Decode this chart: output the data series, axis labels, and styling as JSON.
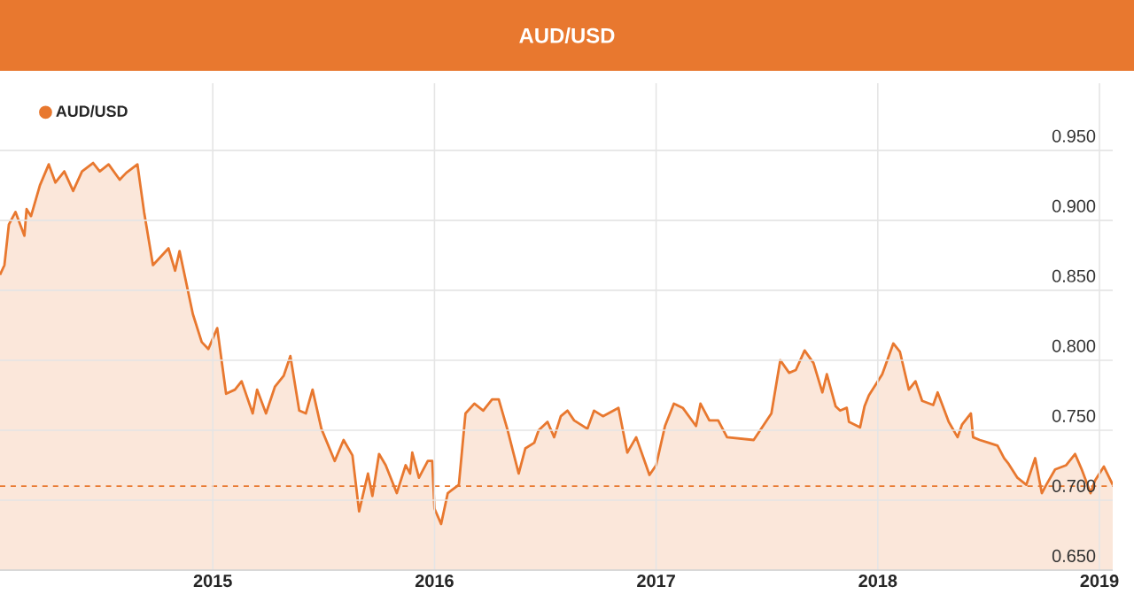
{
  "chart_data": {
    "type": "area",
    "title": "AUD/USD",
    "x": [
      2014.04,
      2014.06,
      2014.08,
      2014.11,
      2014.15,
      2014.16,
      2014.18,
      2014.22,
      2014.26,
      2014.29,
      2014.33,
      2014.37,
      2014.41,
      2014.46,
      2014.49,
      2014.53,
      2014.58,
      2014.61,
      2014.66,
      2014.69,
      2014.73,
      2014.8,
      2014.83,
      2014.85,
      2014.91,
      2014.95,
      2014.98,
      2015.02,
      2015.06,
      2015.1,
      2015.13,
      2015.18,
      2015.2,
      2015.24,
      2015.28,
      2015.32,
      2015.35,
      2015.39,
      2015.42,
      2015.45,
      2015.49,
      2015.55,
      2015.59,
      2015.63,
      2015.66,
      2015.7,
      2015.72,
      2015.75,
      2015.78,
      2015.83,
      2015.87,
      2015.89,
      2015.9,
      2015.93,
      2015.97,
      2015.99,
      2016.0,
      2016.03,
      2016.06,
      2016.11,
      2016.14,
      2016.18,
      2016.22,
      2016.23,
      2016.26,
      2016.29,
      2016.33,
      2016.38,
      2016.41,
      2016.45,
      2016.47,
      2016.51,
      2016.54,
      2016.57,
      2016.6,
      2016.63,
      2016.69,
      2016.72,
      2016.76,
      2016.83,
      2016.87,
      2016.91,
      2016.97,
      2017.0,
      2017.04,
      2017.08,
      2017.12,
      2017.18,
      2017.2,
      2017.24,
      2017.28,
      2017.32,
      2017.44,
      2017.52,
      2017.56,
      2017.6,
      2017.63,
      2017.67,
      2017.71,
      2017.75,
      2017.77,
      2017.81,
      2017.83,
      2017.86,
      2017.87,
      2017.92,
      2017.94,
      2017.96,
      2018.02,
      2018.07,
      2018.1,
      2018.14,
      2018.17,
      2018.2,
      2018.25,
      2018.27,
      2018.32,
      2018.36,
      2018.38,
      2018.42,
      2018.43,
      2018.46,
      2018.5,
      2018.54,
      2018.57,
      2018.59,
      2018.63,
      2018.67,
      2018.71,
      2018.74,
      2018.76,
      2018.8,
      2018.85,
      2018.89,
      2018.92,
      2018.96,
      2018.98,
      2019.02,
      2019.06
    ],
    "series": [
      {
        "name": "AUD/USD",
        "color": "#e8782f",
        "values": [
          0.861,
          0.868,
          0.897,
          0.906,
          0.889,
          0.908,
          0.903,
          0.925,
          0.94,
          0.927,
          0.935,
          0.921,
          0.935,
          0.941,
          0.935,
          0.94,
          0.929,
          0.934,
          0.94,
          0.906,
          0.868,
          0.88,
          0.864,
          0.878,
          0.833,
          0.813,
          0.808,
          0.823,
          0.776,
          0.779,
          0.785,
          0.762,
          0.779,
          0.762,
          0.781,
          0.789,
          0.803,
          0.764,
          0.762,
          0.779,
          0.751,
          0.728,
          0.743,
          0.732,
          0.692,
          0.719,
          0.703,
          0.733,
          0.725,
          0.705,
          0.725,
          0.719,
          0.734,
          0.716,
          0.728,
          0.728,
          0.694,
          0.683,
          0.705,
          0.711,
          0.762,
          0.769,
          0.764,
          0.766,
          0.772,
          0.772,
          0.75,
          0.719,
          0.737,
          0.741,
          0.75,
          0.756,
          0.745,
          0.76,
          0.764,
          0.757,
          0.751,
          0.764,
          0.76,
          0.766,
          0.734,
          0.745,
          0.718,
          0.725,
          0.753,
          0.769,
          0.766,
          0.753,
          0.769,
          0.757,
          0.757,
          0.745,
          0.743,
          0.762,
          0.8,
          0.791,
          0.793,
          0.807,
          0.798,
          0.777,
          0.79,
          0.767,
          0.764,
          0.766,
          0.756,
          0.752,
          0.767,
          0.775,
          0.79,
          0.812,
          0.806,
          0.779,
          0.785,
          0.771,
          0.768,
          0.777,
          0.756,
          0.745,
          0.754,
          0.762,
          0.745,
          0.743,
          0.741,
          0.739,
          0.73,
          0.726,
          0.716,
          0.711,
          0.73,
          0.705,
          0.711,
          0.722,
          0.725,
          0.733,
          0.722,
          0.705,
          0.714,
          0.724,
          0.711
        ]
      }
    ],
    "xlim": [
      2014.04,
      2019.06
    ],
    "ylim": [
      0.65,
      0.998
    ],
    "xticks": [
      2015,
      2016,
      2017,
      2018,
      2019
    ],
    "yticks": [
      {
        "value": 0.65,
        "label": "0.650"
      },
      {
        "value": 0.7,
        "label": "0.700"
      },
      {
        "value": 0.75,
        "label": "0.750"
      },
      {
        "value": 0.8,
        "label": "0.800"
      },
      {
        "value": 0.85,
        "label": "0.850"
      },
      {
        "value": 0.9,
        "label": "0.900"
      },
      {
        "value": 0.95,
        "label": "0.950"
      }
    ],
    "ref_lines": [
      {
        "axis": "y",
        "value": 0.71,
        "color": "#e8782f",
        "line_style": "dashed"
      }
    ],
    "grid": true,
    "legend": "top left",
    "marker": "none",
    "line_style": "solid"
  }
}
